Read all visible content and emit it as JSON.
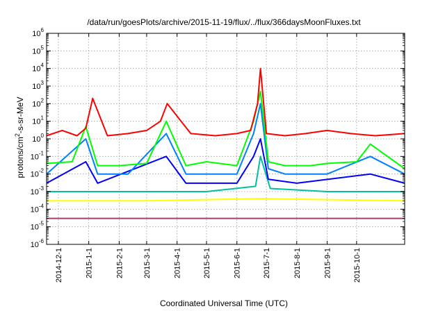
{
  "chart_data": {
    "type": "line",
    "title": "/data/run/goesPlots/archive/2015-11-19/flux/../flux/366daysMoonFluxes.txt",
    "xlabel": "Coordinated Universal Time (UTC)",
    "ylabel": "protons/cm2-s-sr-MeV",
    "ylabel_parts": {
      "pre": "protons/cm",
      "sup": "2",
      "post": "-s-sr-MeV"
    },
    "yscale": "log",
    "ylim": [
      1e-06,
      1000000.0
    ],
    "xlim": [
      "2014-11-19",
      "2015-11-19"
    ],
    "grid": true,
    "x_tick_labels": [
      "2014-12-1",
      "2015-1-1",
      "2015-2-1",
      "2015-3-1",
      "2015-4-1",
      "2015-5-1",
      "2015-6-1",
      "2015-7-1",
      "2015-8-1",
      "2015-9-1",
      "2015-10-1"
    ],
    "y_tick_exponents": [
      -6,
      -5,
      -4,
      -3,
      -2,
      -1,
      0,
      1,
      2,
      3,
      4,
      5,
      6
    ],
    "y_tick_base": "10",
    "series": [
      {
        "color": "#ff0000",
        "x": [
          "2014-11-19",
          "2014-12-05",
          "2014-12-20",
          "2014-12-29",
          "2015-01-05",
          "2015-01-20",
          "2015-02-10",
          "2015-03-01",
          "2015-03-15",
          "2015-03-22",
          "2015-04-15",
          "2015-05-10",
          "2015-06-01",
          "2015-06-15",
          "2015-06-22",
          "2015-06-25",
          "2015-07-01",
          "2015-07-20",
          "2015-08-10",
          "2015-09-01",
          "2015-09-25",
          "2015-10-20",
          "2015-11-19"
        ],
        "y": [
          1.5,
          3,
          1.5,
          4,
          200,
          1.5,
          2,
          3,
          10,
          100,
          2,
          1.5,
          2,
          3,
          100,
          10000,
          2,
          1.5,
          2,
          3,
          2,
          1.5,
          2
        ]
      },
      {
        "color": "#00ff00",
        "x": [
          "2014-11-19",
          "2014-12-15",
          "2014-12-29",
          "2015-01-10",
          "2015-02-01",
          "2015-03-01",
          "2015-03-21",
          "2015-04-10",
          "2015-05-01",
          "2015-06-01",
          "2015-06-18",
          "2015-06-25",
          "2015-07-03",
          "2015-07-20",
          "2015-08-15",
          "2015-09-01",
          "2015-10-01",
          "2015-10-15",
          "2015-11-19"
        ],
        "y": [
          0.04,
          0.05,
          5,
          0.03,
          0.03,
          0.04,
          10,
          0.03,
          0.05,
          0.03,
          10,
          500,
          0.05,
          0.03,
          0.03,
          0.04,
          0.05,
          0.5,
          0.02
        ]
      },
      {
        "color": "#0080ff",
        "x": [
          "2014-11-19",
          "2014-12-29",
          "2015-01-10",
          "2015-02-10",
          "2015-03-21",
          "2015-04-10",
          "2015-05-01",
          "2015-06-01",
          "2015-06-18",
          "2015-06-25",
          "2015-07-03",
          "2015-07-20",
          "2015-09-01",
          "2015-10-15",
          "2015-11-19"
        ],
        "y": [
          0.01,
          1,
          0.01,
          0.01,
          2,
          0.01,
          0.01,
          0.01,
          2,
          100,
          0.02,
          0.01,
          0.01,
          0.1,
          0.01
        ]
      },
      {
        "color": "#0000ff",
        "x": [
          "2014-11-19",
          "2014-12-29",
          "2015-01-10",
          "2015-03-21",
          "2015-04-10",
          "2015-06-01",
          "2015-06-18",
          "2015-06-25",
          "2015-07-03",
          "2015-08-01",
          "2015-10-15",
          "2015-11-19"
        ],
        "y": [
          0.003,
          0.05,
          0.003,
          0.1,
          0.003,
          0.003,
          0.1,
          1,
          0.005,
          0.003,
          0.01,
          0.003
        ]
      },
      {
        "color": "#00c0a0",
        "x": [
          "2014-11-19",
          "2015-01-01",
          "2015-03-01",
          "2015-05-01",
          "2015-06-20",
          "2015-06-25",
          "2015-07-05",
          "2015-09-01",
          "2015-11-19"
        ],
        "y": [
          0.001,
          0.001,
          0.001,
          0.001,
          0.002,
          0.1,
          0.0015,
          0.001,
          0.001
        ]
      },
      {
        "color": "#ffff00",
        "x": [
          "2014-11-19",
          "2015-03-01",
          "2015-06-25",
          "2015-11-19"
        ],
        "y": [
          0.0003,
          0.0003,
          0.0004,
          0.0003
        ]
      },
      {
        "color": "#a0406a",
        "x": [
          "2014-11-19",
          "2015-01-01",
          "2015-03-01",
          "2015-05-01",
          "2015-07-01",
          "2015-09-01",
          "2015-11-19"
        ],
        "y": [
          3e-05,
          3e-05,
          3e-05,
          3e-05,
          3e-05,
          3e-05,
          3e-05
        ]
      }
    ]
  }
}
